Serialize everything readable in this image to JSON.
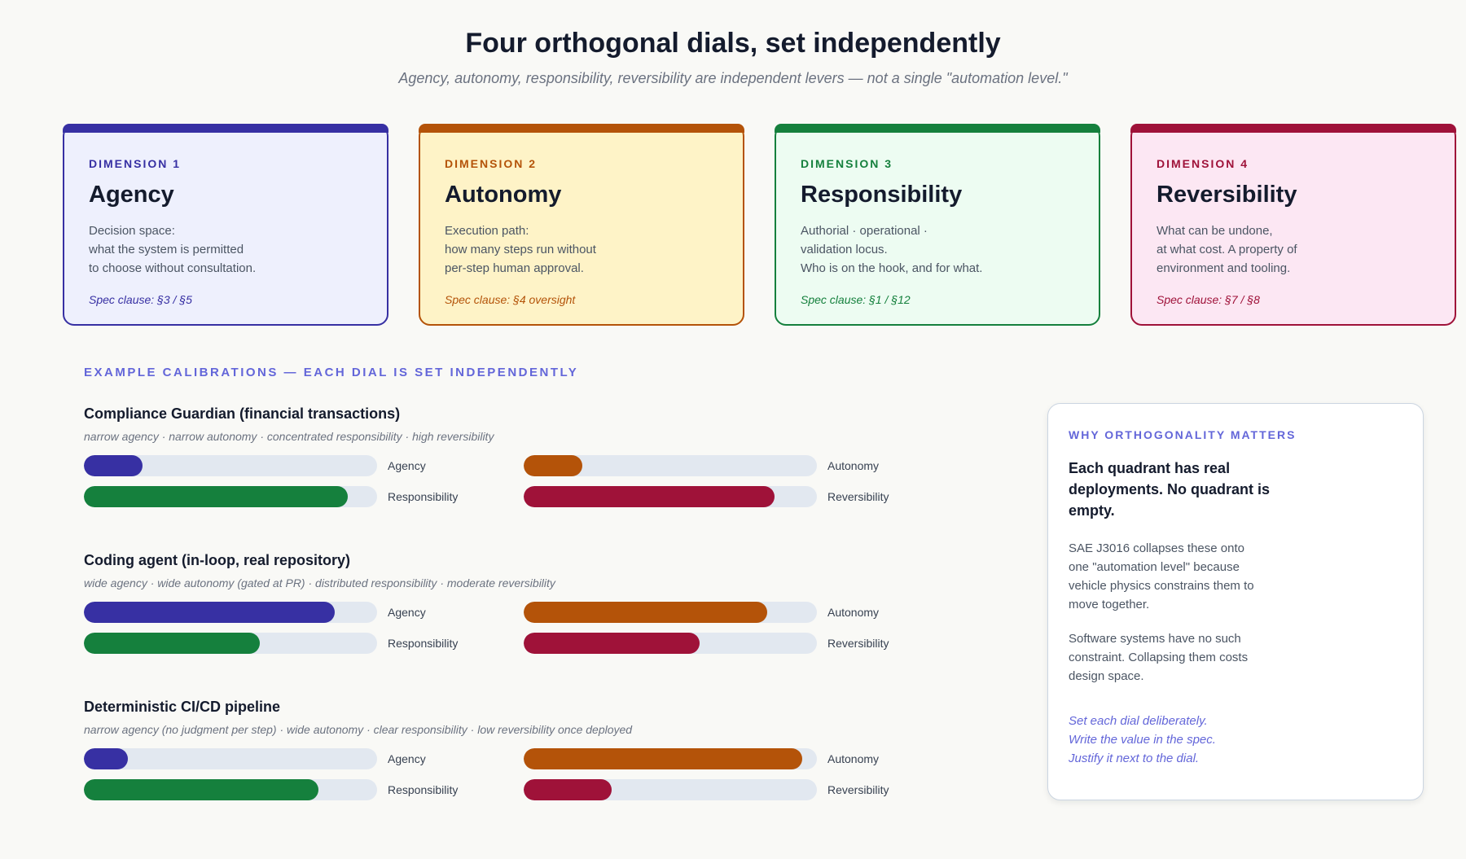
{
  "header": {
    "title": "Four orthogonal dials, set independently",
    "subtitle": "Agency, autonomy, responsibility, reversibility are independent levers — not a single \"automation level.\""
  },
  "dimensions": [
    {
      "label": "DIMENSION 1",
      "name": "Agency",
      "desc": "Decision space:\nwhat the system is permitted\nto choose without consultation.",
      "clause": "Spec clause: §3 / §5",
      "accent": "#3730a3",
      "bg": "#eef0fd"
    },
    {
      "label": "DIMENSION 2",
      "name": "Autonomy",
      "desc": "Execution path:\nhow many steps run without\nper-step human approval.",
      "clause": "Spec clause: §4 oversight",
      "accent": "#b45309",
      "bg": "#fef3c7"
    },
    {
      "label": "DIMENSION 3",
      "name": "Responsibility",
      "desc": "Authorial · operational ·\nvalidation locus.\nWho is on the hook, and for what.",
      "clause": "Spec clause: §1 / §12",
      "accent": "#15803d",
      "bg": "#edfcf2"
    },
    {
      "label": "DIMENSION 4",
      "name": "Reversibility",
      "desc": "What can be undone,\nat what cost. A property of\nenvironment and tooling.",
      "clause": "Spec clause: §7 / §8",
      "accent": "#9f1239",
      "bg": "#fce7f3"
    }
  ],
  "section_label": "EXAMPLE CALIBRATIONS — EACH DIAL IS SET INDEPENDENTLY",
  "dial_labels": {
    "agency": "Agency",
    "autonomy": "Autonomy",
    "responsibility": "Responsibility",
    "reversibility": "Reversibility"
  },
  "dial_colors": {
    "agency": "#3730a3",
    "autonomy": "#b45309",
    "responsibility": "#15803d",
    "reversibility": "#9f1239",
    "track": "#e2e8f0"
  },
  "examples": [
    {
      "title": "Compliance Guardian (financial transactions)",
      "subtitle": "narrow agency · narrow autonomy · concentrated responsibility · high reversibility",
      "levels": {
        "agency": 0.2,
        "autonomy": 0.2,
        "responsibility": 0.9,
        "reversibility": 0.855
      }
    },
    {
      "title": "Coding agent (in-loop, real repository)",
      "subtitle": "wide agency · wide autonomy (gated at PR) · distributed responsibility · moderate reversibility",
      "levels": {
        "agency": 0.855,
        "autonomy": 0.83,
        "responsibility": 0.6,
        "reversibility": 0.6
      }
    },
    {
      "title": "Deterministic CI/CD pipeline",
      "subtitle": "narrow agency (no judgment per step) · wide autonomy · clear responsibility · low reversibility once deployed",
      "levels": {
        "agency": 0.15,
        "autonomy": 0.95,
        "responsibility": 0.8,
        "reversibility": 0.3
      }
    }
  ],
  "why": {
    "label": "WHY ORTHOGONALITY MATTERS",
    "heading": "Each quadrant has real deployments. No quadrant is empty.",
    "p1": "SAE J3016 collapses these onto one \"automation level\" because vehicle physics constrains them to move together.",
    "p2": "Software systems have no such constraint. Collapsing them costs design space.",
    "closing": "Set each dial deliberately.\nWrite the value in the spec.\nJustify it next to the dial."
  }
}
